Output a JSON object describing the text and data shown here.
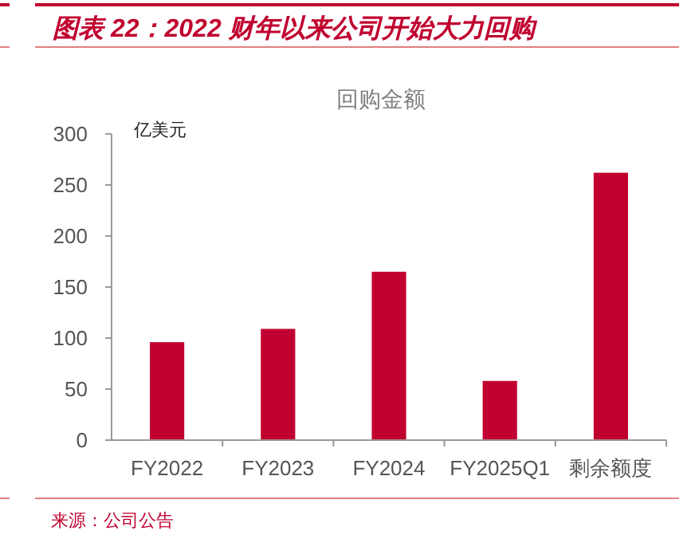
{
  "chart_data": {
    "type": "bar",
    "title": "图表 22：2022 财年以来公司开始大力回购",
    "subtitle": "回购金额",
    "ylabel": "亿美元",
    "categories": [
      "FY2022",
      "FY2023",
      "FY2024",
      "FY2025Q1",
      "剩余额度"
    ],
    "values": [
      96,
      109,
      165,
      58,
      262
    ],
    "color": "#c0002f",
    "ylim": [
      0,
      300
    ],
    "yticks": [
      0,
      50,
      100,
      150,
      200,
      250,
      300
    ],
    "grid": false,
    "annotations": [
      "来源：公司公告"
    ]
  }
}
